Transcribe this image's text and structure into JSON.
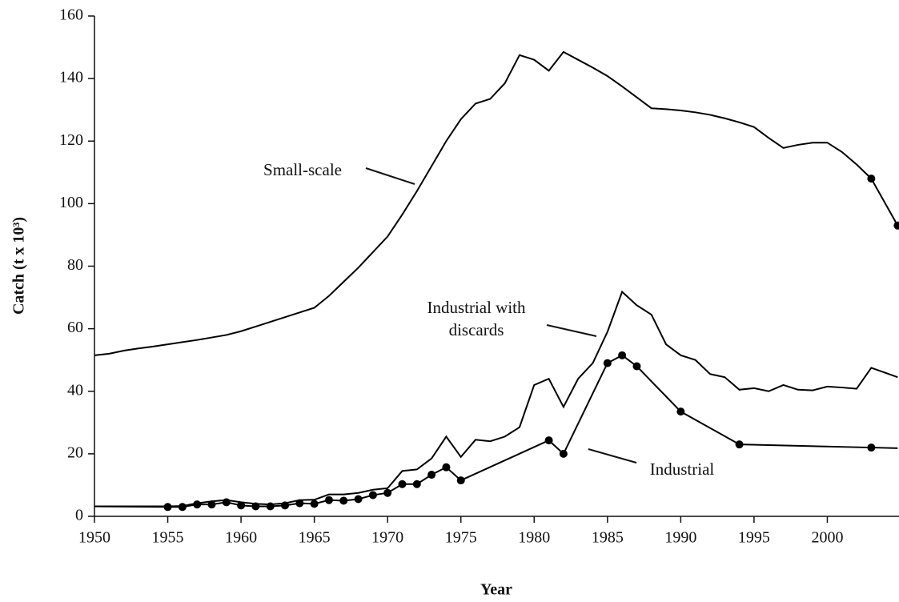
{
  "chart_data": {
    "type": "line",
    "xlabel": "Year",
    "ylabel": "Catch (t x 10³)",
    "xlim": [
      1950,
      2005
    ],
    "ylim": [
      0,
      160
    ],
    "xticks": [
      1950,
      1955,
      1960,
      1965,
      1970,
      1975,
      1980,
      1985,
      1990,
      1995,
      2000
    ],
    "yticks": [
      0,
      20,
      40,
      60,
      80,
      100,
      120,
      140,
      160
    ],
    "color": "#000000",
    "series": [
      {
        "name": "Small-scale",
        "x": [
          1950,
          1951,
          1952,
          1953,
          1954,
          1955,
          1956,
          1957,
          1958,
          1959,
          1960,
          1961,
          1962,
          1963,
          1964,
          1965,
          1966,
          1967,
          1968,
          1969,
          1970,
          1971,
          1972,
          1973,
          1974,
          1975,
          1976,
          1977,
          1978,
          1979,
          1980,
          1981,
          1982,
          1983,
          1984,
          1985,
          1986,
          1987,
          1988,
          1989,
          1990,
          1991,
          1992,
          1993,
          1994,
          1995,
          1996,
          1997,
          1998,
          1999,
          2000,
          2001,
          2002,
          2003,
          2004.8
        ],
        "values": [
          51.5,
          52,
          53,
          53.7,
          54.3,
          55,
          55.7,
          56.4,
          57.2,
          58,
          59.2,
          60.7,
          62.2,
          63.7,
          65.2,
          66.7,
          70.5,
          75,
          79.5,
          84.5,
          89.5,
          96.5,
          104,
          112,
          120,
          127,
          132,
          133.5,
          138.5,
          147.5,
          146,
          142.5,
          148.5,
          146,
          143.5,
          140.8,
          137.5,
          134,
          130.5,
          130.2,
          129.8,
          129.2,
          128.4,
          127.3,
          126,
          124.5,
          121,
          117.8,
          118.8,
          119.5,
          119.5,
          116.5,
          112.5,
          108,
          93
        ],
        "marker_indices": [
          53,
          54
        ]
      },
      {
        "name": "Industrial with discards",
        "x": [
          1950,
          1955,
          1956,
          1957,
          1958,
          1959,
          1960,
          1961,
          1962,
          1963,
          1964,
          1965,
          1966,
          1967,
          1968,
          1969,
          1970,
          1971,
          1972,
          1973,
          1974,
          1975,
          1976,
          1977,
          1978,
          1979,
          1980,
          1981,
          1982,
          1983,
          1984,
          1985,
          1986,
          1987,
          1988,
          1989,
          1990,
          1991,
          1992,
          1993,
          1994,
          1995,
          1996,
          1997,
          1998,
          1999,
          2000,
          2001,
          2002,
          2003,
          2004.8
        ],
        "values": [
          3.2,
          3.2,
          3.3,
          4.2,
          4.8,
          5.2,
          4.5,
          4,
          3.8,
          4.2,
          5.2,
          5.3,
          7,
          7,
          7.5,
          8.5,
          9,
          14.5,
          15,
          18.5,
          25.5,
          19,
          24.5,
          24,
          25.5,
          28.5,
          42,
          44,
          35,
          44,
          49,
          59,
          71.8,
          67.5,
          64.5,
          55,
          51.5,
          50,
          45.5,
          44.5,
          40.5,
          41,
          40,
          42,
          40.5,
          40.3,
          41.5,
          41.2,
          40.8,
          47.5,
          44.5
        ],
        "marker_indices": []
      },
      {
        "name": "Industrial",
        "x": [
          1950,
          1955,
          1956,
          1957,
          1958,
          1959,
          1960,
          1961,
          1962,
          1963,
          1964,
          1965,
          1966,
          1967,
          1968,
          1969,
          1970,
          1971,
          1972,
          1973,
          1974,
          1975,
          1981,
          1982,
          1985,
          1986,
          1987,
          1990,
          1994,
          2003,
          2004.8
        ],
        "values": [
          3.2,
          3,
          3,
          3.8,
          3.8,
          4.5,
          3.5,
          3.2,
          3.2,
          3.5,
          4.2,
          4,
          5.2,
          5,
          5.5,
          6.8,
          7.5,
          10.3,
          10.3,
          13.3,
          15.7,
          11.5,
          24.3,
          20,
          49,
          51.5,
          48,
          33.5,
          23,
          22,
          21.8
        ],
        "marker_indices": [
          1,
          2,
          3,
          4,
          5,
          6,
          7,
          8,
          9,
          10,
          11,
          12,
          13,
          14,
          15,
          16,
          17,
          18,
          19,
          20,
          21,
          22,
          23,
          24,
          25,
          26,
          27,
          28,
          29
        ]
      }
    ]
  }
}
